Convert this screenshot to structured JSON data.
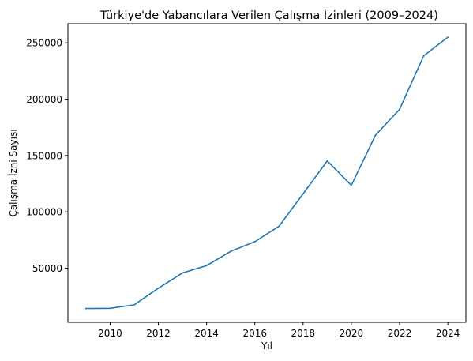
{
  "chart_data": {
    "type": "line",
    "title": "Türkiye'de Yabancılara Verilen Çalışma İzinleri (2009–2024)",
    "xlabel": "Yıl",
    "ylabel": "Çalışma İzni Sayısı",
    "xlim": [
      2008.25,
      2024.75
    ],
    "ylim": [
      2000,
      267000
    ],
    "xticks": [
      2010,
      2012,
      2014,
      2016,
      2018,
      2020,
      2022,
      2024
    ],
    "yticks": [
      50000,
      100000,
      150000,
      200000,
      250000
    ],
    "grid": false,
    "colors": {
      "line": "#1f77b4"
    },
    "series": [
      {
        "x": [
          2009,
          2010,
          2011,
          2012,
          2013,
          2014,
          2015,
          2016,
          2017,
          2018,
          2019,
          2020,
          2021,
          2022,
          2023,
          2024
        ],
        "y": [
          14200,
          14400,
          17500,
          32300,
          45800,
          52300,
          65000,
          73500,
          87200,
          116000,
          145200,
          123600,
          168000,
          191000,
          238500,
          255000
        ]
      }
    ]
  }
}
